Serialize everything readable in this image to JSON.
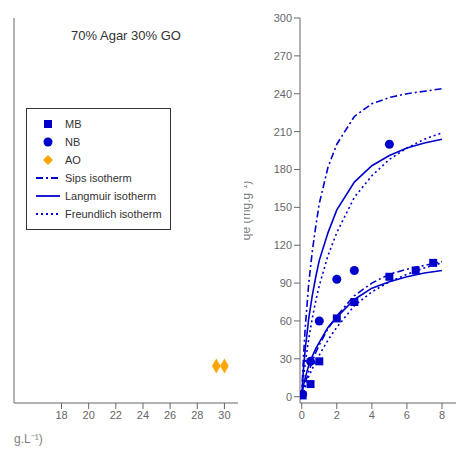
{
  "chart_data": [
    {
      "type": "scatter",
      "title": "70% Agar 30% GO",
      "xlabel": "g.L⁻¹)",
      "xlim": [
        14.5,
        31.0
      ],
      "xticks": [
        18,
        20,
        22,
        24,
        26,
        28,
        30
      ],
      "ylim": [
        -4,
        22
      ],
      "tick_labels": "x",
      "legend": "upper left",
      "series": [
        {
          "name": "AO",
          "type": "scatter",
          "color": "#FFA500",
          "marker": "diamond",
          "x": [
            29.4,
            30.0
          ],
          "values": [
            -1.5,
            -1.5
          ]
        }
      ]
    },
    {
      "type": "line",
      "ylabel": "qe (mg.g⁻¹)",
      "xlim": [
        -0.1,
        8.8
      ],
      "xticks": [
        0,
        2,
        4,
        6,
        8
      ],
      "ylim": [
        -5,
        300
      ],
      "yticks": [
        0,
        30,
        60,
        90,
        120,
        150,
        180,
        210,
        240,
        270,
        300
      ],
      "series": [
        {
          "name": "Langmuir isotherm",
          "type": "line",
          "color": "#0000cd",
          "line_style": "solid",
          "x": [
            0.0,
            0.05,
            0.1,
            0.2,
            0.4,
            0.6,
            0.8,
            1.0,
            1.5,
            2.0,
            3.0,
            4.0,
            5.0,
            6.0,
            7.0,
            8.0
          ],
          "values": [
            0.0,
            5,
            9,
            15,
            25,
            32,
            38,
            43,
            55,
            63,
            77,
            86,
            91,
            95,
            98,
            100
          ]
        },
        {
          "name": "Sips isotherm",
          "type": "line",
          "color": "#0000cd",
          "line_style": "dashdot",
          "x": [
            0.0,
            0.05,
            0.1,
            0.2,
            0.4,
            0.6,
            0.8,
            1.0,
            1.5,
            2.0,
            3.0,
            4.0,
            5.0,
            6.0,
            7.0,
            8.0
          ],
          "values": [
            0.0,
            3,
            6,
            11,
            20,
            28,
            35,
            41,
            54,
            64,
            80,
            90,
            97,
            101,
            104,
            107
          ]
        },
        {
          "name": "Freundlich isotherm",
          "type": "line",
          "color": "#0000cd",
          "line_style": "dotted",
          "x": [
            0.0,
            0.05,
            0.1,
            0.2,
            0.4,
            0.6,
            0.8,
            1.0,
            1.5,
            2.0,
            3.0,
            4.0,
            5.0,
            6.0,
            7.0,
            8.0
          ],
          "values": [
            0.0,
            2,
            4,
            8,
            16,
            22,
            28,
            33,
            45,
            55,
            72,
            83,
            91,
            97,
            102,
            106
          ]
        },
        {
          "name": "Langmuir isotherm",
          "type": "line",
          "color": "#0000cd",
          "line_style": "solid",
          "x": [
            0.0,
            0.05,
            0.1,
            0.2,
            0.4,
            0.6,
            0.8,
            1.0,
            1.5,
            2.0,
            3.0,
            4.0,
            5.0,
            6.0,
            7.0,
            8.0
          ],
          "values": [
            0.0,
            12,
            22,
            38,
            62,
            80,
            95,
            108,
            130,
            148,
            170,
            183,
            191,
            197,
            201,
            204
          ]
        },
        {
          "name": "Sips isotherm",
          "type": "line",
          "color": "#0000cd",
          "line_style": "dashdot",
          "x": [
            0.0,
            0.05,
            0.1,
            0.2,
            0.4,
            0.6,
            0.8,
            1.0,
            1.5,
            2.0,
            3.0,
            4.0,
            5.0,
            6.0,
            7.0,
            8.0
          ],
          "values": [
            0.0,
            18,
            32,
            55,
            90,
            115,
            135,
            153,
            182,
            200,
            222,
            232,
            237,
            240,
            242,
            244
          ]
        },
        {
          "name": "Freundlich isotherm",
          "type": "line",
          "color": "#0000cd",
          "line_style": "dotted",
          "x": [
            0.0,
            0.05,
            0.1,
            0.2,
            0.4,
            0.6,
            0.8,
            1.0,
            1.5,
            2.0,
            3.0,
            4.0,
            5.0,
            6.0,
            7.0,
            8.0
          ],
          "values": [
            0.0,
            8,
            15,
            27,
            46,
            62,
            76,
            88,
            112,
            130,
            158,
            175,
            188,
            197,
            204,
            209
          ]
        },
        {
          "name": "MB",
          "type": "scatter",
          "color": "#0000cd",
          "marker": "square",
          "x": [
            0.05,
            0.5,
            1.0,
            2.0,
            3.0,
            5.0,
            6.5,
            7.5
          ],
          "values": [
            1,
            10,
            28,
            62,
            75,
            95,
            100,
            106
          ]
        },
        {
          "name": "NB",
          "type": "scatter",
          "color": "#0000cd",
          "marker": "circle",
          "x": [
            0.05,
            0.5,
            1.0,
            2.0,
            3.0,
            5.0
          ],
          "values": [
            2,
            28,
            60,
            93,
            100,
            200
          ]
        }
      ]
    }
  ]
}
